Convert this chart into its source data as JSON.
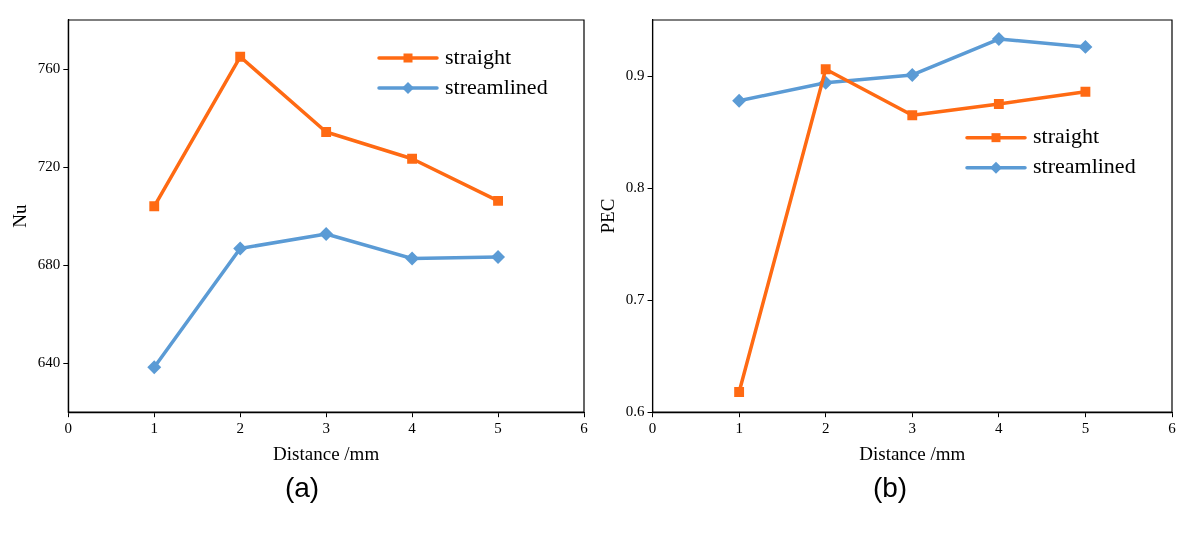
{
  "chart_data": [
    {
      "type": "line",
      "xlabel": "Distance /mm",
      "ylabel": "Nu",
      "annotations": [
        "(a)"
      ],
      "x": [
        1,
        2,
        3,
        4,
        5
      ],
      "xlim": [
        0,
        6
      ],
      "xticks": [
        0,
        1,
        2,
        3,
        4,
        5,
        6
      ],
      "ylim": [
        620,
        780
      ],
      "yticks": [
        640,
        680,
        720,
        760
      ],
      "legend": "top right",
      "grid": false,
      "series": [
        {
          "name": "straight",
          "color": "#ff6a13",
          "marker": "square",
          "values": [
            704,
            765,
            734.3,
            723.4,
            706.2
          ]
        },
        {
          "name": "streamlined",
          "color": "#5b9bd5",
          "marker": "diamond",
          "values": [
            638.3,
            686.8,
            692.7,
            682.7,
            683.3
          ]
        }
      ]
    },
    {
      "type": "line",
      "xlabel": "Distance /mm",
      "ylabel": "PEC",
      "annotations": [
        "(b)"
      ],
      "x": [
        1,
        2,
        3,
        4,
        5
      ],
      "xlim": [
        0,
        6
      ],
      "xticks": [
        0,
        1,
        2,
        3,
        4,
        5,
        6
      ],
      "ylim": [
        0.6,
        0.95
      ],
      "yticks": [
        0.6,
        0.7,
        0.8,
        0.9
      ],
      "legend": "right",
      "grid": false,
      "series": [
        {
          "name": "straight",
          "color": "#ff6a13",
          "marker": "square",
          "values": [
            0.618,
            0.906,
            0.865,
            0.875,
            0.886
          ]
        },
        {
          "name": "streamlined",
          "color": "#5b9bd5",
          "marker": "diamond",
          "values": [
            0.878,
            0.894,
            0.901,
            0.933,
            0.926
          ]
        }
      ]
    }
  ]
}
